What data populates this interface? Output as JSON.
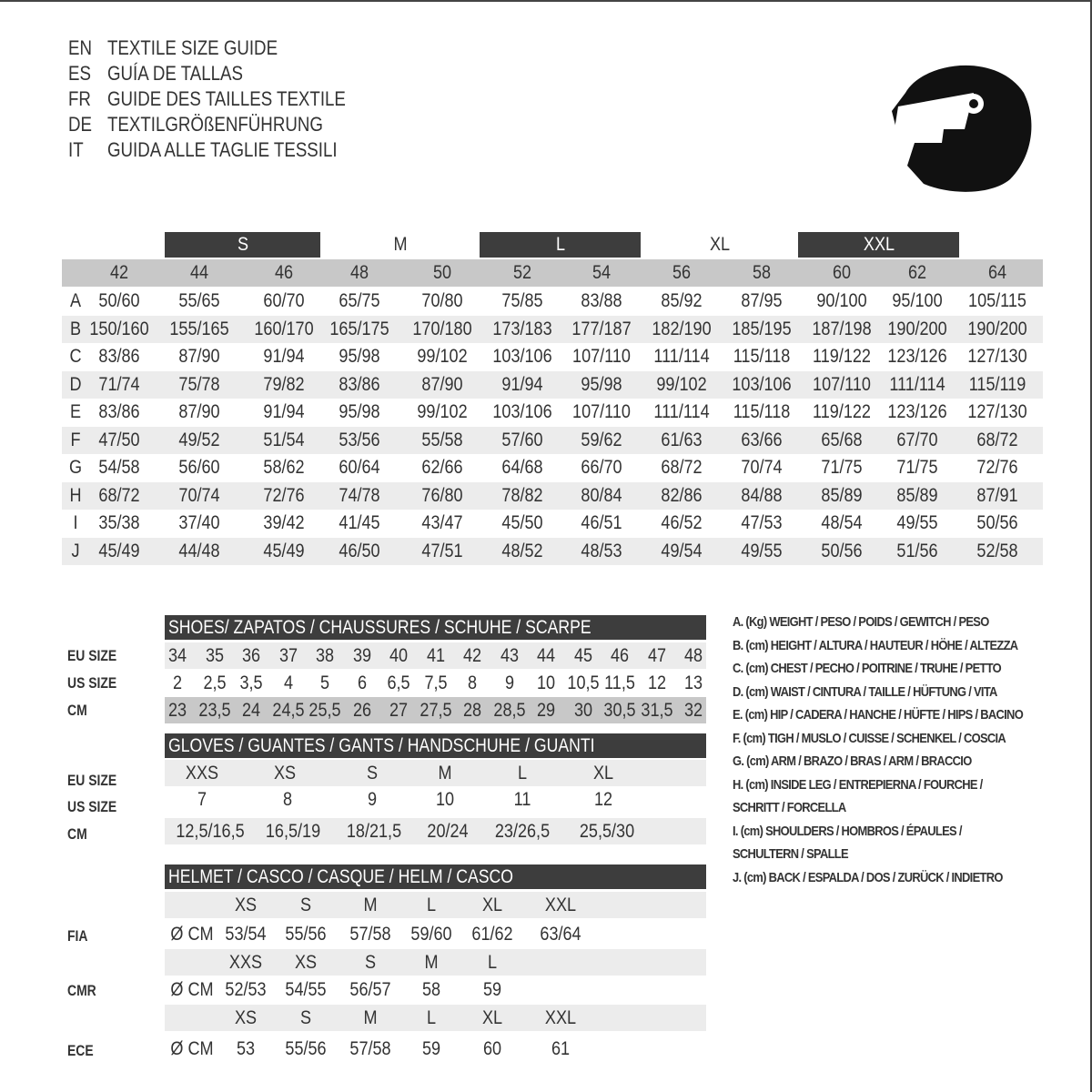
{
  "titles": [
    {
      "code": "EN",
      "text": "TEXTILE SIZE GUIDE"
    },
    {
      "code": "ES",
      "text": "GUÍA DE TALLAS"
    },
    {
      "code": "FR",
      "text": "GUIDE DES TAILLES TEXTILE"
    },
    {
      "code": "DE",
      "text": "TEXTILGRÖßENFÜHRUNG"
    },
    {
      "code": "IT",
      "text": "GUIDA ALLE TAGLIE TESSILI"
    }
  ],
  "icon": "helmet-icon",
  "colors": {
    "dark": "#3d3d3d",
    "gray": "#c8c8c8",
    "light": "#ececec"
  },
  "textile": {
    "size_groups": [
      "S",
      "M",
      "L",
      "XL",
      "XXL"
    ],
    "sizes": [
      "42",
      "44",
      "46",
      "48",
      "50",
      "52",
      "54",
      "56",
      "58",
      "60",
      "62",
      "64"
    ],
    "rows": [
      {
        "key": "A",
        "values": [
          "50/60",
          "55/65",
          "60/70",
          "65/75",
          "70/80",
          "75/85",
          "83/88",
          "85/92",
          "87/95",
          "90/100",
          "95/100",
          "105/115"
        ]
      },
      {
        "key": "B",
        "values": [
          "150/160",
          "155/165",
          "160/170",
          "165/175",
          "170/180",
          "173/183",
          "177/187",
          "182/190",
          "185/195",
          "187/198",
          "190/200",
          "190/200"
        ]
      },
      {
        "key": "C",
        "values": [
          "83/86",
          "87/90",
          "91/94",
          "95/98",
          "99/102",
          "103/106",
          "107/110",
          "111/114",
          "115/118",
          "119/122",
          "123/126",
          "127/130"
        ]
      },
      {
        "key": "D",
        "values": [
          "71/74",
          "75/78",
          "79/82",
          "83/86",
          "87/90",
          "91/94",
          "95/98",
          "99/102",
          "103/106",
          "107/110",
          "111/114",
          "115/119"
        ]
      },
      {
        "key": "E",
        "values": [
          "83/86",
          "87/90",
          "91/94",
          "95/98",
          "99/102",
          "103/106",
          "107/110",
          "111/114",
          "115/118",
          "119/122",
          "123/126",
          "127/130"
        ]
      },
      {
        "key": "F",
        "values": [
          "47/50",
          "49/52",
          "51/54",
          "53/56",
          "55/58",
          "57/60",
          "59/62",
          "61/63",
          "63/66",
          "65/68",
          "67/70",
          "68/72"
        ]
      },
      {
        "key": "G",
        "values": [
          "54/58",
          "56/60",
          "58/62",
          "60/64",
          "62/66",
          "64/68",
          "66/70",
          "68/72",
          "70/74",
          "71/75",
          "71/75",
          "72/76"
        ]
      },
      {
        "key": "H",
        "values": [
          "68/72",
          "70/74",
          "72/76",
          "74/78",
          "76/80",
          "78/82",
          "80/84",
          "82/86",
          "84/88",
          "85/89",
          "85/89",
          "87/91"
        ]
      },
      {
        "key": "I",
        "values": [
          "35/38",
          "37/40",
          "39/42",
          "41/45",
          "43/47",
          "45/50",
          "46/51",
          "46/52",
          "47/53",
          "48/54",
          "49/55",
          "50/56"
        ]
      },
      {
        "key": "J",
        "values": [
          "45/49",
          "44/48",
          "45/49",
          "46/50",
          "47/51",
          "48/52",
          "48/53",
          "49/54",
          "49/55",
          "50/56",
          "51/56",
          "52/58"
        ]
      }
    ]
  },
  "shoes": {
    "title": "SHOES/ ZAPATOS / CHAUSSURES / SCHUHE / SCARPE",
    "rows": [
      {
        "label": "EU SIZE",
        "values": [
          "34",
          "35",
          "36",
          "37",
          "38",
          "39",
          "40",
          "41",
          "42",
          "43",
          "44",
          "45",
          "46",
          "47",
          "48"
        ]
      },
      {
        "label": "US SIZE",
        "values": [
          "2",
          "2,5",
          "3,5",
          "4",
          "5",
          "6",
          "6,5",
          "7,5",
          "8",
          "9",
          "10",
          "10,5",
          "11,5",
          "12",
          "13"
        ]
      },
      {
        "label": "CM",
        "values": [
          "23",
          "23,5",
          "24",
          "24,5",
          "25,5",
          "26",
          "27",
          "27,5",
          "28",
          "28,5",
          "29",
          "30",
          "30,5",
          "31,5",
          "32"
        ]
      }
    ]
  },
  "gloves": {
    "title": "GLOVES / GUANTES / GANTS / HANDSCHUHE / GUANTI",
    "rows": [
      {
        "label": "EU SIZE",
        "values": [
          "XXS",
          "XS",
          "S",
          "M",
          "L",
          "XL"
        ]
      },
      {
        "label": "US SIZE",
        "values": [
          "7",
          "8",
          "9",
          "10",
          "11",
          "12"
        ]
      },
      {
        "label": "CM",
        "values": [
          "12,5/16,5",
          "16,5/19",
          "18/21,5",
          "20/24",
          "23/26,5",
          "25,5/30"
        ]
      }
    ]
  },
  "helmet": {
    "title": "HELMET / CASCO / CASQUE / HELM / CASCO",
    "unit": "Ø CM",
    "standards": [
      {
        "label": "FIA",
        "sizes": [
          "XS",
          "S",
          "M",
          "L",
          "XL",
          "XXL"
        ],
        "values": [
          "53/54",
          "55/56",
          "57/58",
          "59/60",
          "61/62",
          "63/64"
        ]
      },
      {
        "label": "CMR",
        "sizes": [
          "XXS",
          "XS",
          "S",
          "M",
          "L"
        ],
        "values": [
          "52/53",
          "54/55",
          "56/57",
          "58",
          "59"
        ]
      },
      {
        "label": "ECE",
        "sizes": [
          "XS",
          "S",
          "M",
          "L",
          "XL",
          "XXL"
        ],
        "values": [
          "53",
          "55/56",
          "57/58",
          "59",
          "60",
          "61"
        ]
      }
    ]
  },
  "legend": [
    "A. (Kg) WEIGHT / PESO / POIDS / GEWITCH / PESO",
    "B. (cm) HEIGHT / ALTURA / HAUTEUR / HÖHE / ALTEZZA",
    "C. (cm) CHEST / PECHO / POITRINE / TRUHE / PETTO",
    "D. (cm) WAIST / CINTURA / TAILLE / HÜFTUNG / VITA",
    "E. (cm) HIP / CADERA / HANCHE / HÜFTE / HIPS /  BACINO",
    "F.  (cm) TIGH / MUSLO / CUISSE / SCHENKEL / COSCIA",
    "G. (cm) ARM  / BRAZO / BRAS / ARM / BRACCIO",
    "H. (cm) INSIDE LEG / ENTREPIERNA / FOURCHE /",
    "SCHRITT / FORCELLA",
    "I.  (cm) SHOULDERS / HOMBROS / ÉPAULES /",
    "SCHULTERN / SPALLE",
    "J. (cm) BACK / ESPALDA / DOS / ZURÜCK / INDIETRO"
  ]
}
